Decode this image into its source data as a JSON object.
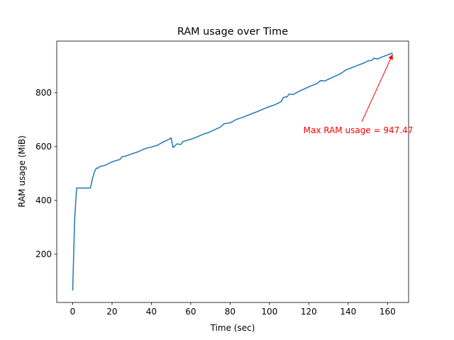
{
  "chart_data": {
    "type": "line",
    "title": "RAM usage over Time",
    "xlabel": "Time (sec)",
    "ylabel": "RAM usage (MiB)",
    "x": [
      0,
      1,
      2,
      9,
      10,
      11,
      12,
      13,
      14,
      16,
      18,
      20,
      22,
      24,
      25,
      27,
      30,
      33,
      36,
      38,
      40,
      43,
      46,
      49,
      50,
      51,
      53,
      55,
      56,
      58,
      60,
      63,
      66,
      69,
      72,
      75,
      77,
      80,
      83,
      85,
      88,
      91,
      94,
      97,
      100,
      103,
      106,
      107,
      109,
      110,
      112,
      115,
      118,
      121,
      124,
      126,
      128,
      130,
      133,
      136,
      139,
      142,
      145,
      148,
      150,
      152,
      153,
      155,
      157,
      160,
      162.6
    ],
    "series": [
      {
        "name": "RAM usage",
        "color": "#1f77b4",
        "values": [
          66,
          330,
          446,
          446,
          480,
          505,
          520,
          520,
          527,
          529,
          536,
          543,
          548,
          552,
          562,
          565,
          573,
          580,
          590,
          595,
          598,
          605,
          617,
          627,
          632,
          597,
          610,
          608,
          618,
          623,
          627,
          635,
          645,
          652,
          662,
          672,
          685,
          688,
          700,
          705,
          713,
          722,
          730,
          740,
          748,
          756,
          767,
          782,
          785,
          795,
          793,
          805,
          815,
          825,
          833,
          845,
          843,
          850,
          860,
          870,
          885,
          893,
          902,
          910,
          918,
          920,
          928,
          925,
          932,
          940,
          947.47
        ]
      }
    ],
    "annotation": {
      "text": "Max RAM usage = 947.47",
      "color": "#ff0000"
    },
    "xlim": [
      -8.1,
      170.7
    ],
    "ylim": [
      21.4,
      991.5
    ],
    "xticks": [
      0,
      20,
      40,
      60,
      80,
      100,
      120,
      140,
      160
    ],
    "yticks": [
      200,
      400,
      600,
      800
    ]
  }
}
